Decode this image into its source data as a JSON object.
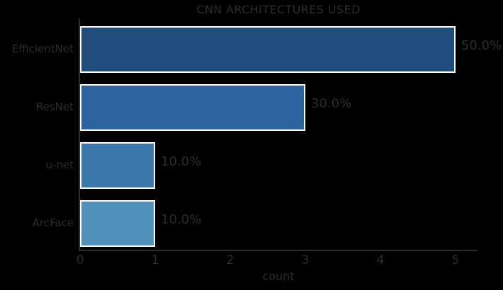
{
  "chart_data": {
    "type": "bar",
    "orientation": "horizontal",
    "title": "CNN ARCHITECTURES USED",
    "xlabel": "count",
    "ylabel": "",
    "categories": [
      "EfficientNet",
      "ResNet",
      "u-net",
      "ArcFace"
    ],
    "values": [
      5,
      3,
      1,
      1
    ],
    "value_labels": [
      "50.0%",
      "30.0%",
      "10.0%",
      "10.0%"
    ],
    "xticks": [
      0,
      1,
      2,
      3,
      4,
      5
    ],
    "xlim": [
      0,
      5.28
    ],
    "grid": false,
    "legend": null,
    "bar_colors": [
      "#1f4c7a",
      "#2d639e",
      "#3b77ab",
      "#5290bc"
    ],
    "bar_edge_color": "#ffffff",
    "background_color": "#000000",
    "text_color": "#2b2b30",
    "spine_color": "#2e2e2e"
  }
}
